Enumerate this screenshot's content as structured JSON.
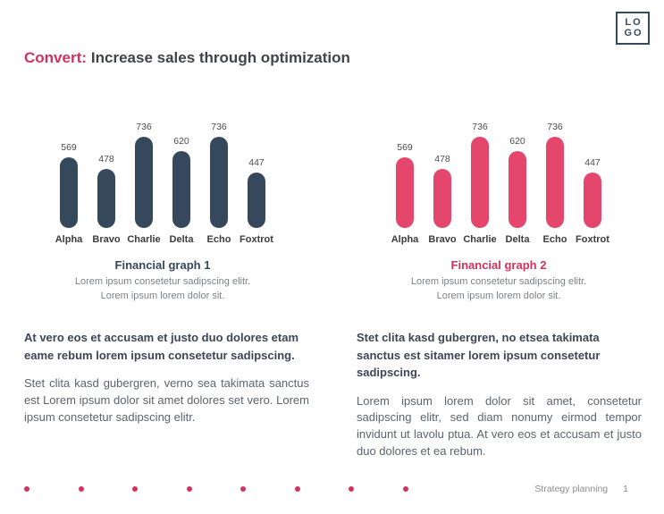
{
  "logo": {
    "line1": "LO",
    "line2": "GO"
  },
  "header": {
    "accent": "Convert:",
    "title": "Increase sales through optimization"
  },
  "colors": {
    "accent_pink": "#D1335C",
    "bar_dark": "#36495C",
    "bar_pink": "#E5466B"
  },
  "chart_data": [
    {
      "type": "bar",
      "categories": [
        "Alpha",
        "Bravo",
        "Charlie",
        "Delta",
        "Echo",
        "Foxtrot"
      ],
      "values": [
        569,
        478,
        736,
        620,
        736,
        447
      ],
      "title": "Financial graph 1",
      "title_color": "#36495C",
      "bar_color": "#36495C",
      "subtitle_lines": [
        "Lorem ipsum consetetur sadipscing elitr.",
        "Lorem ipsum lorem dolor sit."
      ],
      "xlabel": "",
      "ylabel": "",
      "ylim": [
        0,
        736
      ],
      "grid": false,
      "legend": "none",
      "data_labels": "above-bars"
    },
    {
      "type": "bar",
      "categories": [
        "Alpha",
        "Bravo",
        "Charlie",
        "Delta",
        "Echo",
        "Foxtrot"
      ],
      "values": [
        569,
        478,
        736,
        620,
        736,
        447
      ],
      "title": "Financial graph 2",
      "title_color": "#D1335C",
      "bar_color": "#E5466B",
      "subtitle_lines": [
        "Lorem ipsum consetetur sadipscing elitr.",
        "Lorem ipsum lorem dolor sit."
      ],
      "xlabel": "",
      "ylabel": "",
      "ylim": [
        0,
        736
      ],
      "grid": false,
      "legend": "none",
      "data_labels": "above-bars"
    }
  ],
  "sections": [
    {
      "heading": "At vero eos et accusam et justo duo dolores etam eame rebum lorem ipsum consetetur sadipscing.",
      "body": "Stet clita kasd gubergren, verno sea takimata sanctus est Lorem ipsum dolor sit amet dolores set vero. Lorem ipsum consetetur sadipscing elitr."
    },
    {
      "heading": "Stet clita kasd gubergren, no etsea takimata sanctus est sitamer lorem ipsum consetetur sadipscing.",
      "body": "Lorem ipsum lorem dolor sit amet, consetetur sadipscing elitr, sed diam nonumy eirmod tempor invidunt ut lavolu ptua. At vero eos et accusam et justo duo dolores et ea rebum."
    }
  ],
  "footer": {
    "dots_count": 8,
    "label": "Strategy planning",
    "page": "1"
  }
}
